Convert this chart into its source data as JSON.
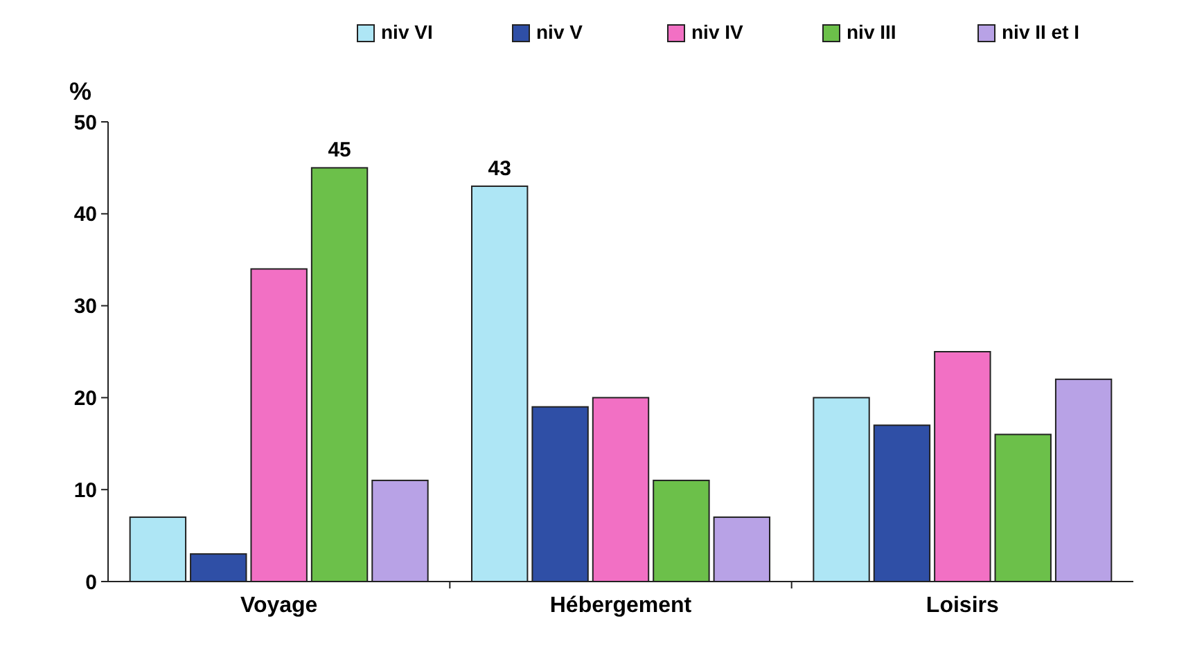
{
  "chart_data": {
    "type": "bar",
    "ylabel": "%",
    "categories": [
      "Voyage",
      "Hébergement",
      "Loisirs"
    ],
    "series": [
      {
        "name": "niv VI",
        "color": "#aee6f5",
        "values": [
          7,
          43,
          20
        ],
        "value_labels": [
          null,
          "43",
          null
        ]
      },
      {
        "name": "niv V",
        "color": "#2f4fa6",
        "values": [
          3,
          19,
          17
        ]
      },
      {
        "name": "niv IV",
        "color": "#f270c4",
        "values": [
          34,
          20,
          25
        ]
      },
      {
        "name": "niv III",
        "color": "#6cc04a",
        "values": [
          45,
          11,
          16
        ],
        "value_labels": [
          "45",
          null,
          null
        ]
      },
      {
        "name": "niv II et I",
        "color": "#b8a2e6",
        "values": [
          11,
          7,
          22
        ]
      }
    ],
    "ylim": [
      0,
      50
    ],
    "yticks": [
      0,
      10,
      20,
      30,
      40,
      50
    ],
    "grid": false,
    "legend": "top right"
  }
}
